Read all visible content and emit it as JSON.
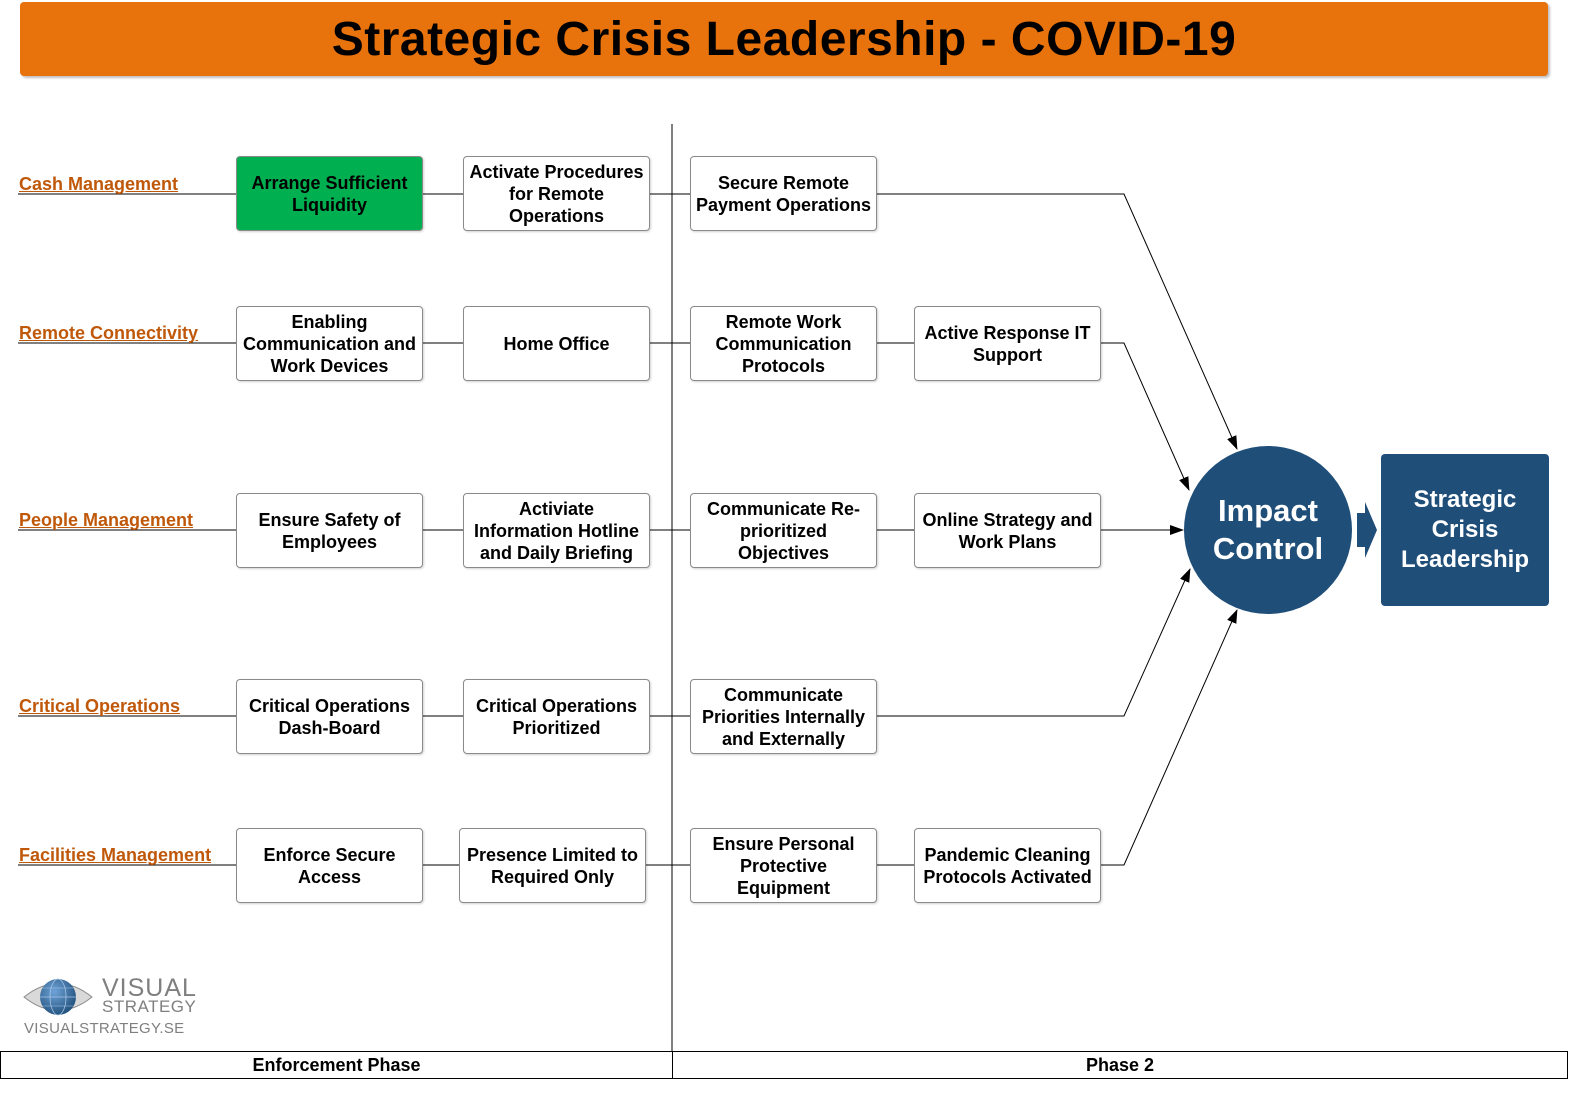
{
  "title": "Strategic Crisis Leadership - COVID-19",
  "colors": {
    "title_bar": "#e8720c",
    "row_label": "#c0580a",
    "highlight_box": "#00b050",
    "dark_blue": "#1f4e79"
  },
  "rows": [
    {
      "label": "Cash Management",
      "boxes": [
        {
          "text": "Arrange Sufficient Liquidity",
          "highlight": true
        },
        {
          "text": "Activate Procedures for Remote Operations"
        },
        {
          "text": "Secure Remote Payment Operations"
        }
      ]
    },
    {
      "label": "Remote Connectivity",
      "boxes": [
        {
          "text": "Enabling Communication and Work Devices"
        },
        {
          "text": "Home Office"
        },
        {
          "text": "Remote Work Communication Protocols"
        },
        {
          "text": "Active Response IT Support"
        }
      ]
    },
    {
      "label": "People Management",
      "boxes": [
        {
          "text": "Ensure Safety of Employees"
        },
        {
          "text": "Activiate Information Hotline and Daily Briefing"
        },
        {
          "text": "Communicate Re-prioritized Objectives"
        },
        {
          "text": "Online Strategy and Work Plans"
        }
      ]
    },
    {
      "label": "Critical Operations",
      "boxes": [
        {
          "text": "Critical Operations Dash-Board"
        },
        {
          "text": "Critical Operations Prioritized"
        },
        {
          "text": "Communicate Priorities Internally and Externally"
        }
      ]
    },
    {
      "label": "Facilities Management",
      "boxes": [
        {
          "text": "Enforce Secure Access"
        },
        {
          "text": "Presence Limited to Required Only"
        },
        {
          "text": "Ensure Personal Protective Equipment"
        },
        {
          "text": "Pandemic Cleaning Protocols Activated"
        }
      ]
    }
  ],
  "impact": {
    "text": "Impact Control"
  },
  "result": {
    "text": "Strategic Crisis Leadership"
  },
  "phases": [
    {
      "label": "Enforcement Phase"
    },
    {
      "label": "Phase 2"
    }
  ],
  "logo": {
    "line1": "VISUAL",
    "line2": "STRATEGY",
    "url": "VISUALSTRATEGY.SE"
  }
}
